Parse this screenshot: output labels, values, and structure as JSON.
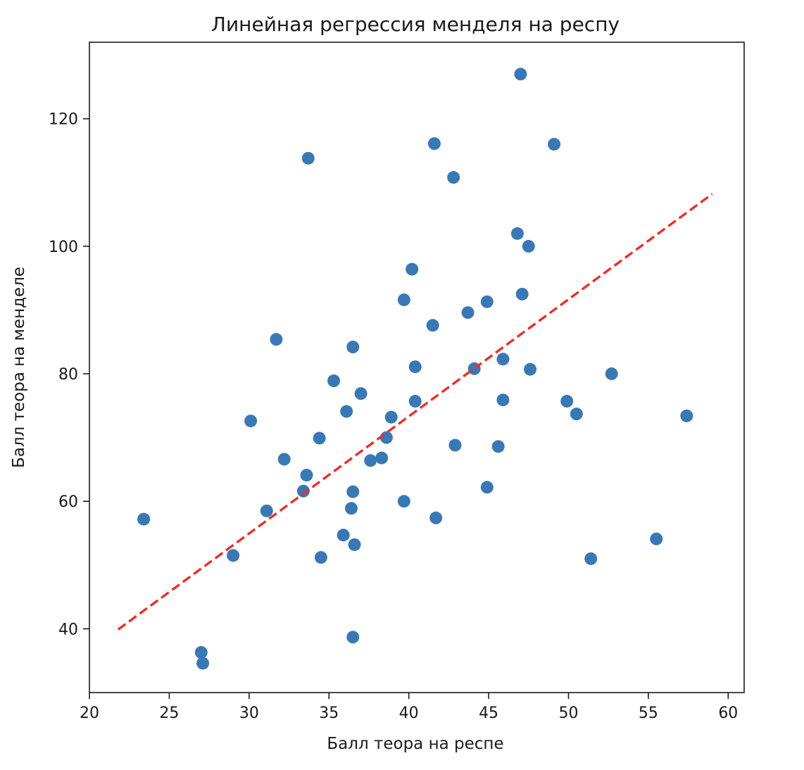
{
  "chart_data": {
    "type": "scatter",
    "title": "Линейная регрессия менделя на респу",
    "xlabel": "Балл теора на респе",
    "ylabel": "Балл теора на менделе",
    "xlim": [
      20,
      61
    ],
    "ylim": [
      30,
      132
    ],
    "xticks": [
      20,
      25,
      30,
      35,
      40,
      45,
      50,
      55,
      60
    ],
    "yticks": [
      40,
      60,
      80,
      100,
      120
    ],
    "grid": false,
    "legend": "none",
    "colors": {
      "points": "#3a78b5",
      "regression": "#e8302a"
    },
    "series": [
      {
        "type": "scatter",
        "points": [
          {
            "x": 23.4,
            "y": 57.2
          },
          {
            "x": 27.0,
            "y": 36.3
          },
          {
            "x": 27.1,
            "y": 34.6
          },
          {
            "x": 29.0,
            "y": 51.5
          },
          {
            "x": 30.1,
            "y": 72.6
          },
          {
            "x": 31.1,
            "y": 58.5
          },
          {
            "x": 31.7,
            "y": 85.4
          },
          {
            "x": 32.2,
            "y": 66.6
          },
          {
            "x": 33.4,
            "y": 61.6
          },
          {
            "x": 33.6,
            "y": 64.1
          },
          {
            "x": 33.7,
            "y": 113.8
          },
          {
            "x": 34.4,
            "y": 69.9
          },
          {
            "x": 34.5,
            "y": 51.2
          },
          {
            "x": 35.3,
            "y": 78.9
          },
          {
            "x": 35.9,
            "y": 54.7
          },
          {
            "x": 36.1,
            "y": 74.1
          },
          {
            "x": 36.4,
            "y": 58.9
          },
          {
            "x": 36.5,
            "y": 84.2
          },
          {
            "x": 36.5,
            "y": 61.5
          },
          {
            "x": 36.5,
            "y": 38.7
          },
          {
            "x": 36.6,
            "y": 53.2
          },
          {
            "x": 37.0,
            "y": 76.9
          },
          {
            "x": 37.6,
            "y": 66.4
          },
          {
            "x": 38.3,
            "y": 66.8
          },
          {
            "x": 38.6,
            "y": 70.0
          },
          {
            "x": 38.9,
            "y": 73.2
          },
          {
            "x": 39.7,
            "y": 91.6
          },
          {
            "x": 39.7,
            "y": 60.0
          },
          {
            "x": 40.2,
            "y": 96.4
          },
          {
            "x": 40.4,
            "y": 81.1
          },
          {
            "x": 40.4,
            "y": 75.7
          },
          {
            "x": 41.5,
            "y": 87.6
          },
          {
            "x": 41.6,
            "y": 116.1
          },
          {
            "x": 41.7,
            "y": 57.4
          },
          {
            "x": 42.8,
            "y": 110.8
          },
          {
            "x": 42.9,
            "y": 68.8
          },
          {
            "x": 43.7,
            "y": 89.6
          },
          {
            "x": 44.1,
            "y": 80.8
          },
          {
            "x": 44.9,
            "y": 91.3
          },
          {
            "x": 44.9,
            "y": 62.2
          },
          {
            "x": 45.6,
            "y": 68.6
          },
          {
            "x": 45.9,
            "y": 82.3
          },
          {
            "x": 45.9,
            "y": 75.9
          },
          {
            "x": 46.8,
            "y": 102.0
          },
          {
            "x": 47.0,
            "y": 127.0
          },
          {
            "x": 47.1,
            "y": 92.5
          },
          {
            "x": 47.5,
            "y": 100.0
          },
          {
            "x": 47.6,
            "y": 80.7
          },
          {
            "x": 49.1,
            "y": 116.0
          },
          {
            "x": 49.9,
            "y": 75.7
          },
          {
            "x": 50.5,
            "y": 73.7
          },
          {
            "x": 51.4,
            "y": 51.0
          },
          {
            "x": 52.7,
            "y": 80.0
          },
          {
            "x": 55.5,
            "y": 54.1
          },
          {
            "x": 57.4,
            "y": 73.4
          }
        ]
      },
      {
        "type": "line",
        "style": "dashed",
        "points": [
          {
            "x": 21.8,
            "y": 39.9
          },
          {
            "x": 59.0,
            "y": 108.2
          }
        ]
      }
    ]
  }
}
